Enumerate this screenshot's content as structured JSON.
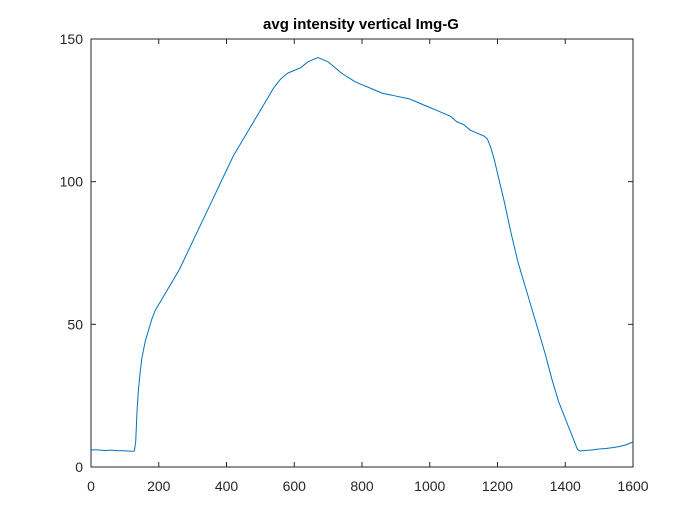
{
  "chart_data": {
    "type": "line",
    "title": "avg intensity vertical Img-G",
    "xlabel": "",
    "ylabel": "",
    "xlim": [
      0,
      1600
    ],
    "ylim": [
      0,
      150
    ],
    "xticks": [
      0,
      200,
      400,
      600,
      800,
      1000,
      1200,
      1400,
      1600
    ],
    "yticks": [
      0,
      50,
      100,
      150
    ],
    "grid": false,
    "legend": "none",
    "line_color": "#0072BD",
    "series": [
      {
        "x": [
          0,
          20,
          40,
          60,
          80,
          100,
          120,
          128,
          132,
          136,
          140,
          145,
          150,
          160,
          170,
          180,
          190,
          200,
          220,
          240,
          260,
          280,
          300,
          320,
          340,
          360,
          380,
          400,
          420,
          440,
          460,
          480,
          500,
          520,
          540,
          560,
          580,
          600,
          620,
          630,
          640,
          650,
          660,
          670,
          680,
          690,
          700,
          720,
          740,
          760,
          780,
          800,
          820,
          840,
          860,
          880,
          900,
          920,
          940,
          960,
          980,
          1000,
          1020,
          1040,
          1060,
          1080,
          1100,
          1120,
          1140,
          1160,
          1170,
          1180,
          1190,
          1200,
          1220,
          1240,
          1260,
          1280,
          1300,
          1320,
          1340,
          1360,
          1380,
          1400,
          1410,
          1420,
          1430,
          1436,
          1440,
          1444,
          1450,
          1460,
          1480,
          1500,
          1520,
          1540,
          1560,
          1580,
          1600
        ],
        "y": [
          6,
          6,
          5.8,
          5.9,
          5.7,
          5.7,
          5.5,
          5.6,
          9,
          20,
          27,
          33,
          38,
          44,
          48,
          52,
          55,
          57,
          61,
          65,
          69,
          74,
          79,
          84,
          89,
          94,
          99,
          104,
          109,
          113,
          117,
          121,
          125,
          129,
          133,
          136,
          138,
          139,
          140,
          141,
          142,
          142.5,
          143,
          143.5,
          143,
          142.5,
          142,
          140,
          138,
          136.5,
          135,
          134,
          133,
          132,
          131,
          130.5,
          130,
          129.5,
          129,
          128,
          127,
          126,
          125,
          124,
          123,
          121,
          120,
          118,
          117,
          116,
          115,
          112,
          108,
          103,
          93,
          82,
          72,
          64,
          56,
          48,
          40,
          31,
          23,
          17,
          14,
          11,
          8,
          6.2,
          5.8,
          5.6,
          5.7,
          5.8,
          6,
          6.3,
          6.5,
          6.8,
          7.2,
          7.8,
          8.8
        ]
      }
    ]
  }
}
